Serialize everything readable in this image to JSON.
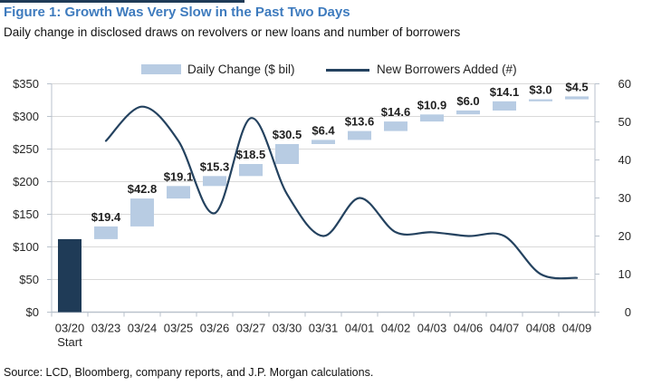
{
  "header": {
    "figure_title": "Figure 1: Growth Was Very Slow in the Past Two Days",
    "subtitle": "Daily change in disclosed draws on revolvers or new loans and number of borrowers"
  },
  "legend": {
    "bar_label": "Daily Change ($ bil)",
    "line_label": "New Borrowers Added (#)"
  },
  "source": "Source: LCD, Bloomberg, company reports, and J.P. Morgan calculations.",
  "colors": {
    "title_blue": "#3E7BBE",
    "bar_fill": "#B8CCE3",
    "bar_start_fill": "#1F3B57",
    "line": "#24425F",
    "gridline": "#D9D9D9",
    "axis_line": "#B9C2CC",
    "text_dark": "#1F1F1F",
    "text_axis": "#262626"
  },
  "chart_data": {
    "type": "combo",
    "categories": [
      "03/20",
      "03/23",
      "03/24",
      "03/25",
      "03/26",
      "03/27",
      "03/30",
      "03/31",
      "04/01",
      "04/02",
      "04/03",
      "04/06",
      "04/07",
      "04/08",
      "04/09"
    ],
    "start_sublabel": "Start",
    "series": [
      {
        "name": "Daily Change ($ bil)",
        "type": "waterfall-bar",
        "axis": "left",
        "labels": [
          "",
          "$19.4",
          "$42.8",
          "$19.1",
          "$15.3",
          "$18.5",
          "$30.5",
          "$6.4",
          "$13.6",
          "$14.6",
          "$10.9",
          "$6.0",
          "$14.1",
          "$3.0",
          "$4.5"
        ],
        "changes": [
          112,
          19.4,
          42.8,
          19.1,
          15.3,
          18.5,
          30.5,
          6.4,
          13.6,
          14.6,
          10.9,
          6.0,
          14.1,
          3.0,
          4.5
        ],
        "cumulative_from": [
          0,
          112,
          131.4,
          174.2,
          193.3,
          208.6,
          227.1,
          257.6,
          264.0,
          277.6,
          292.2,
          303.1,
          309.1,
          323.2,
          326.2
        ],
        "cumulative_to": [
          112,
          131.4,
          174.2,
          193.3,
          208.6,
          227.1,
          257.6,
          264.0,
          277.6,
          292.2,
          303.1,
          309.1,
          323.2,
          326.2,
          330.7
        ],
        "note": "First bar (03/20 Start) is dark navy, unlabeled; its height (~$112 bil) estimated from axis. Remaining bars float from prior cumulative total."
      },
      {
        "name": "New Borrowers Added (#)",
        "type": "line",
        "axis": "right",
        "values": [
          null,
          45,
          54,
          45,
          26,
          51,
          31,
          20,
          30,
          21,
          21,
          20,
          20,
          10,
          9
        ]
      }
    ],
    "left_axis": {
      "ticks": [
        "$350",
        "$300",
        "$250",
        "$200",
        "$150",
        "$100",
        "$50",
        "$0"
      ],
      "min": 0,
      "max": 350
    },
    "right_axis": {
      "ticks": [
        "60",
        "50",
        "40",
        "30",
        "20",
        "10",
        "0"
      ],
      "min": 0,
      "max": 60
    },
    "grid": "horizontal",
    "legend_position": "top"
  }
}
